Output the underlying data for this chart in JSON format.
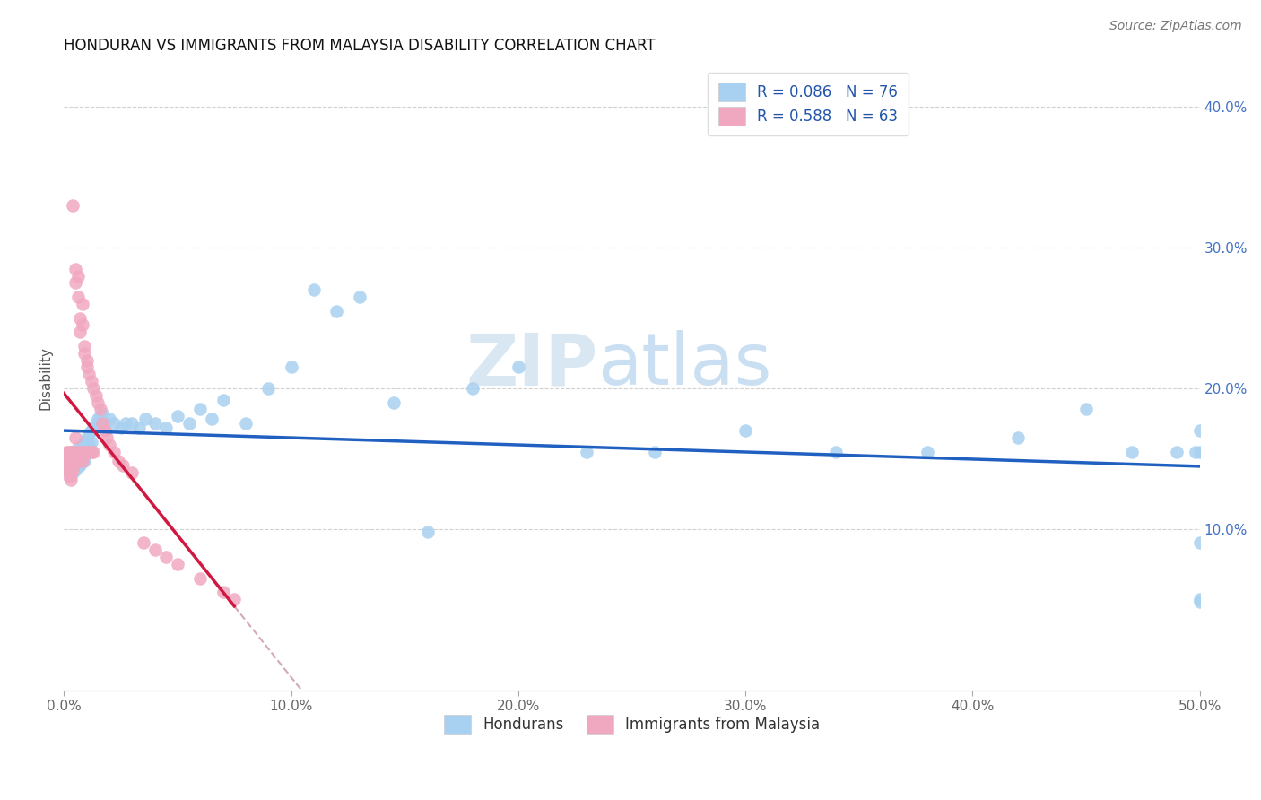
{
  "title": "HONDURAN VS IMMIGRANTS FROM MALAYSIA DISABILITY CORRELATION CHART",
  "source": "Source: ZipAtlas.com",
  "ylabel": "Disability",
  "xlim": [
    0.0,
    0.5
  ],
  "ylim": [
    0.0,
    0.42
  ],
  "xticks": [
    0.0,
    0.1,
    0.2,
    0.3,
    0.4,
    0.5
  ],
  "yticks": [
    0.1,
    0.2,
    0.3,
    0.4
  ],
  "xticklabels": [
    "0.0%",
    "10.0%",
    "20.0%",
    "30.0%",
    "40.0%",
    "50.0%"
  ],
  "yticklabels_right": [
    "10.0%",
    "20.0%",
    "30.0%",
    "40.0%"
  ],
  "legend1_label": "R = 0.086   N = 76",
  "legend2_label": "R = 0.588   N = 63",
  "hondurans_color": "#a8d0f0",
  "malaysia_color": "#f0a8c0",
  "trendline_hondurans_color": "#2060c0",
  "trendline_malaysia_color": "#d01840",
  "diagonal_color": "#d0a0b0",
  "watermark_zip": "ZIP",
  "watermark_atlas": "atlas",
  "hon_n": 76,
  "mal_n": 63,
  "hon_R": 0.086,
  "mal_R": 0.588,
  "hon_x": [
    0.001,
    0.002,
    0.002,
    0.003,
    0.003,
    0.003,
    0.004,
    0.004,
    0.004,
    0.004,
    0.005,
    0.005,
    0.005,
    0.006,
    0.006,
    0.006,
    0.007,
    0.007,
    0.007,
    0.008,
    0.008,
    0.008,
    0.009,
    0.009,
    0.009,
    0.01,
    0.01,
    0.011,
    0.011,
    0.012,
    0.012,
    0.013,
    0.014,
    0.015,
    0.016,
    0.017,
    0.018,
    0.02,
    0.022,
    0.025,
    0.027,
    0.03,
    0.033,
    0.036,
    0.04,
    0.045,
    0.05,
    0.055,
    0.06,
    0.065,
    0.07,
    0.08,
    0.09,
    0.1,
    0.11,
    0.12,
    0.13,
    0.145,
    0.16,
    0.18,
    0.2,
    0.23,
    0.26,
    0.3,
    0.34,
    0.38,
    0.42,
    0.45,
    0.47,
    0.49,
    0.5,
    0.5,
    0.5,
    0.5,
    0.5,
    0.498
  ],
  "hon_y": [
    0.15,
    0.148,
    0.145,
    0.155,
    0.15,
    0.145,
    0.155,
    0.148,
    0.145,
    0.14,
    0.155,
    0.148,
    0.142,
    0.158,
    0.152,
    0.145,
    0.155,
    0.148,
    0.145,
    0.16,
    0.155,
    0.148,
    0.162,
    0.155,
    0.148,
    0.165,
    0.155,
    0.168,
    0.16,
    0.17,
    0.162,
    0.172,
    0.175,
    0.178,
    0.18,
    0.182,
    0.175,
    0.178,
    0.175,
    0.172,
    0.175,
    0.175,
    0.172,
    0.178,
    0.175,
    0.172,
    0.18,
    0.175,
    0.185,
    0.178,
    0.192,
    0.175,
    0.2,
    0.215,
    0.27,
    0.255,
    0.265,
    0.19,
    0.098,
    0.2,
    0.215,
    0.155,
    0.155,
    0.17,
    0.155,
    0.155,
    0.165,
    0.185,
    0.155,
    0.155,
    0.17,
    0.155,
    0.05,
    0.09,
    0.048,
    0.155
  ],
  "mal_x": [
    0.001,
    0.001,
    0.001,
    0.002,
    0.002,
    0.002,
    0.002,
    0.003,
    0.003,
    0.003,
    0.003,
    0.003,
    0.004,
    0.004,
    0.004,
    0.004,
    0.005,
    0.005,
    0.005,
    0.005,
    0.005,
    0.006,
    0.006,
    0.006,
    0.006,
    0.007,
    0.007,
    0.007,
    0.007,
    0.008,
    0.008,
    0.008,
    0.008,
    0.009,
    0.009,
    0.009,
    0.01,
    0.01,
    0.01,
    0.011,
    0.011,
    0.012,
    0.012,
    0.013,
    0.013,
    0.014,
    0.015,
    0.016,
    0.017,
    0.018,
    0.019,
    0.02,
    0.022,
    0.024,
    0.026,
    0.03,
    0.035,
    0.04,
    0.045,
    0.05,
    0.06,
    0.07,
    0.075
  ],
  "mal_y": [
    0.155,
    0.148,
    0.142,
    0.155,
    0.148,
    0.142,
    0.138,
    0.155,
    0.148,
    0.142,
    0.138,
    0.135,
    0.33,
    0.155,
    0.148,
    0.142,
    0.285,
    0.275,
    0.165,
    0.155,
    0.148,
    0.28,
    0.265,
    0.155,
    0.148,
    0.25,
    0.24,
    0.155,
    0.148,
    0.26,
    0.245,
    0.155,
    0.148,
    0.23,
    0.225,
    0.155,
    0.22,
    0.215,
    0.155,
    0.21,
    0.155,
    0.205,
    0.155,
    0.2,
    0.155,
    0.195,
    0.19,
    0.185,
    0.175,
    0.17,
    0.165,
    0.16,
    0.155,
    0.148,
    0.145,
    0.14,
    0.09,
    0.085,
    0.08,
    0.075,
    0.065,
    0.055,
    0.05
  ]
}
